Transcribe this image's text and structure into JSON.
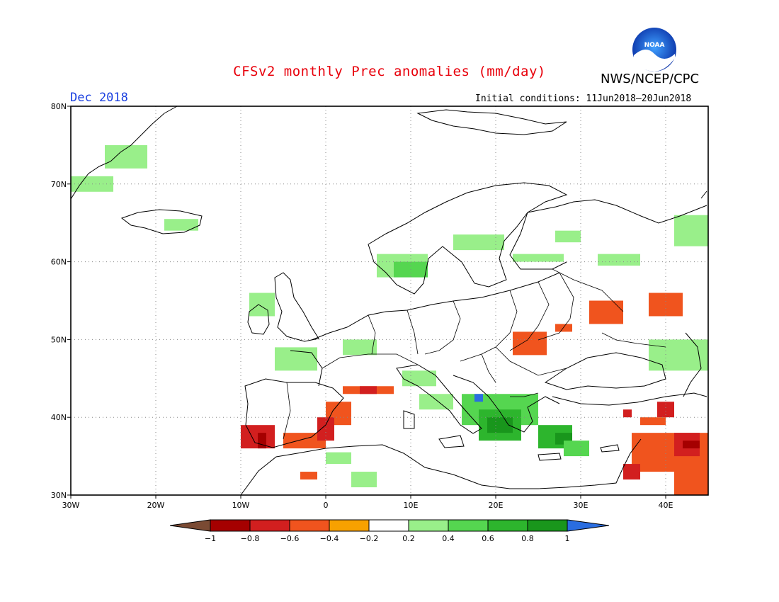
{
  "header": {
    "title": "CFSv2 monthly Prec anomalies (mm/day)",
    "organization": "NWS/NCEP/CPC",
    "logo_text": "NOAA",
    "period": "Dec 2018",
    "initial_conditions": "Initial conditions: 11Jun2018–20Jun2018"
  },
  "map": {
    "extent": {
      "lon": [
        -30,
        45
      ],
      "lat": [
        30,
        80
      ]
    },
    "lat_labels": [
      "30N",
      "40N",
      "50N",
      "60N",
      "70N",
      "80N"
    ],
    "lon_labels": [
      "30W",
      "20W",
      "10W",
      "0",
      "10E",
      "20E",
      "30E",
      "40E"
    ],
    "grid": true,
    "anomaly_regions": [
      {
        "lon": [
          -26,
          -21
        ],
        "lat": [
          72,
          75
        ],
        "cat": "pos02"
      },
      {
        "lon": [
          -30,
          -25
        ],
        "lat": [
          69,
          71
        ],
        "cat": "pos02"
      },
      {
        "lon": [
          -19,
          -15
        ],
        "lat": [
          64,
          65.5
        ],
        "cat": "pos02"
      },
      {
        "lon": [
          -9,
          -6
        ],
        "lat": [
          53,
          56
        ],
        "cat": "pos02"
      },
      {
        "lon": [
          -6,
          -1
        ],
        "lat": [
          46,
          49
        ],
        "cat": "pos02"
      },
      {
        "lon": [
          6,
          12
        ],
        "lat": [
          58,
          61
        ],
        "cat": "pos02"
      },
      {
        "lon": [
          8,
          12
        ],
        "lat": [
          58,
          60
        ],
        "cat": "pos04"
      },
      {
        "lon": [
          15,
          21
        ],
        "lat": [
          61.5,
          63.5
        ],
        "cat": "pos02"
      },
      {
        "lon": [
          22,
          28
        ],
        "lat": [
          60,
          61
        ],
        "cat": "pos02"
      },
      {
        "lon": [
          27,
          30
        ],
        "lat": [
          62.5,
          64
        ],
        "cat": "pos02"
      },
      {
        "lon": [
          32,
          37
        ],
        "lat": [
          59.5,
          61
        ],
        "cat": "pos02"
      },
      {
        "lon": [
          41,
          45
        ],
        "lat": [
          62,
          66
        ],
        "cat": "pos02"
      },
      {
        "lon": [
          2,
          6
        ],
        "lat": [
          48,
          50
        ],
        "cat": "pos02"
      },
      {
        "lon": [
          9,
          13
        ],
        "lat": [
          44,
          46
        ],
        "cat": "pos02"
      },
      {
        "lon": [
          11,
          15
        ],
        "lat": [
          41,
          43
        ],
        "cat": "pos02"
      },
      {
        "lon": [
          0,
          3
        ],
        "lat": [
          34,
          35.5
        ],
        "cat": "pos02"
      },
      {
        "lon": [
          3,
          6
        ],
        "lat": [
          31,
          33
        ],
        "cat": "pos02"
      },
      {
        "lon": [
          38,
          45
        ],
        "lat": [
          46,
          50
        ],
        "cat": "pos02"
      },
      {
        "lon": [
          16,
          25
        ],
        "lat": [
          39,
          43
        ],
        "cat": "pos04"
      },
      {
        "lon": [
          18,
          23
        ],
        "lat": [
          37,
          41
        ],
        "cat": "pos06"
      },
      {
        "lon": [
          19,
          22
        ],
        "lat": [
          38,
          40
        ],
        "cat": "pos08"
      },
      {
        "lon": [
          25,
          29
        ],
        "lat": [
          36,
          39
        ],
        "cat": "pos06"
      },
      {
        "lon": [
          27,
          29
        ],
        "lat": [
          36.5,
          38
        ],
        "cat": "pos08"
      },
      {
        "lon": [
          28,
          31
        ],
        "lat": [
          35,
          37
        ],
        "cat": "pos04"
      },
      {
        "lon": [
          17.5,
          18.5
        ],
        "lat": [
          42,
          43
        ],
        "cat": "pos1"
      },
      {
        "lon": [
          2,
          8
        ],
        "lat": [
          43,
          44
        ],
        "cat": "neg04"
      },
      {
        "lon": [
          4,
          6
        ],
        "lat": [
          43,
          44
        ],
        "cat": "neg06"
      },
      {
        "lon": [
          -10,
          -6
        ],
        "lat": [
          36,
          39
        ],
        "cat": "neg06"
      },
      {
        "lon": [
          -8,
          -7
        ],
        "lat": [
          36,
          38
        ],
        "cat": "neg08"
      },
      {
        "lon": [
          -5,
          0
        ],
        "lat": [
          36,
          38
        ],
        "cat": "neg04"
      },
      {
        "lon": [
          0,
          3
        ],
        "lat": [
          39,
          42
        ],
        "cat": "neg04"
      },
      {
        "lon": [
          -1,
          1
        ],
        "lat": [
          37,
          40
        ],
        "cat": "neg06"
      },
      {
        "lon": [
          -3,
          -1
        ],
        "lat": [
          32,
          33
        ],
        "cat": "neg04"
      },
      {
        "lon": [
          22,
          26
        ],
        "lat": [
          48,
          51
        ],
        "cat": "neg04"
      },
      {
        "lon": [
          27,
          29
        ],
        "lat": [
          51,
          52
        ],
        "cat": "neg04"
      },
      {
        "lon": [
          31,
          35
        ],
        "lat": [
          52,
          55
        ],
        "cat": "neg04"
      },
      {
        "lon": [
          38,
          42
        ],
        "lat": [
          53,
          56
        ],
        "cat": "neg04"
      },
      {
        "lon": [
          36,
          45
        ],
        "lat": [
          33,
          38
        ],
        "cat": "neg04"
      },
      {
        "lon": [
          41,
          45
        ],
        "lat": [
          30,
          36
        ],
        "cat": "neg04"
      },
      {
        "lon": [
          41,
          44
        ],
        "lat": [
          35,
          38
        ],
        "cat": "neg06"
      },
      {
        "lon": [
          42,
          44
        ],
        "lat": [
          36,
          37
        ],
        "cat": "neg08"
      },
      {
        "lon": [
          35,
          37
        ],
        "lat": [
          32,
          34
        ],
        "cat": "neg06"
      },
      {
        "lon": [
          39,
          41
        ],
        "lat": [
          40,
          42
        ],
        "cat": "neg06"
      },
      {
        "lon": [
          35,
          36
        ],
        "lat": [
          40,
          41
        ],
        "cat": "neg06"
      },
      {
        "lon": [
          37,
          40
        ],
        "lat": [
          39,
          40
        ],
        "cat": "neg04"
      }
    ]
  },
  "colorbar": {
    "labels": [
      "−1",
      "−0.8",
      "−0.6",
      "−0.4",
      "−0.2",
      "0.2",
      "0.4",
      "0.6",
      "0.8",
      "1"
    ],
    "colors": {
      "lt_neg1": "#7a4a33",
      "neg08": "#a50000",
      "neg06": "#d21f1f",
      "neg04": "#f0541e",
      "neg02": "#f7a100",
      "zero": "#ffffff",
      "pos02": "#99ef8a",
      "pos04": "#55d650",
      "pos06": "#2db52d",
      "pos08": "#19961c",
      "pos1": "#2a6de0"
    }
  }
}
